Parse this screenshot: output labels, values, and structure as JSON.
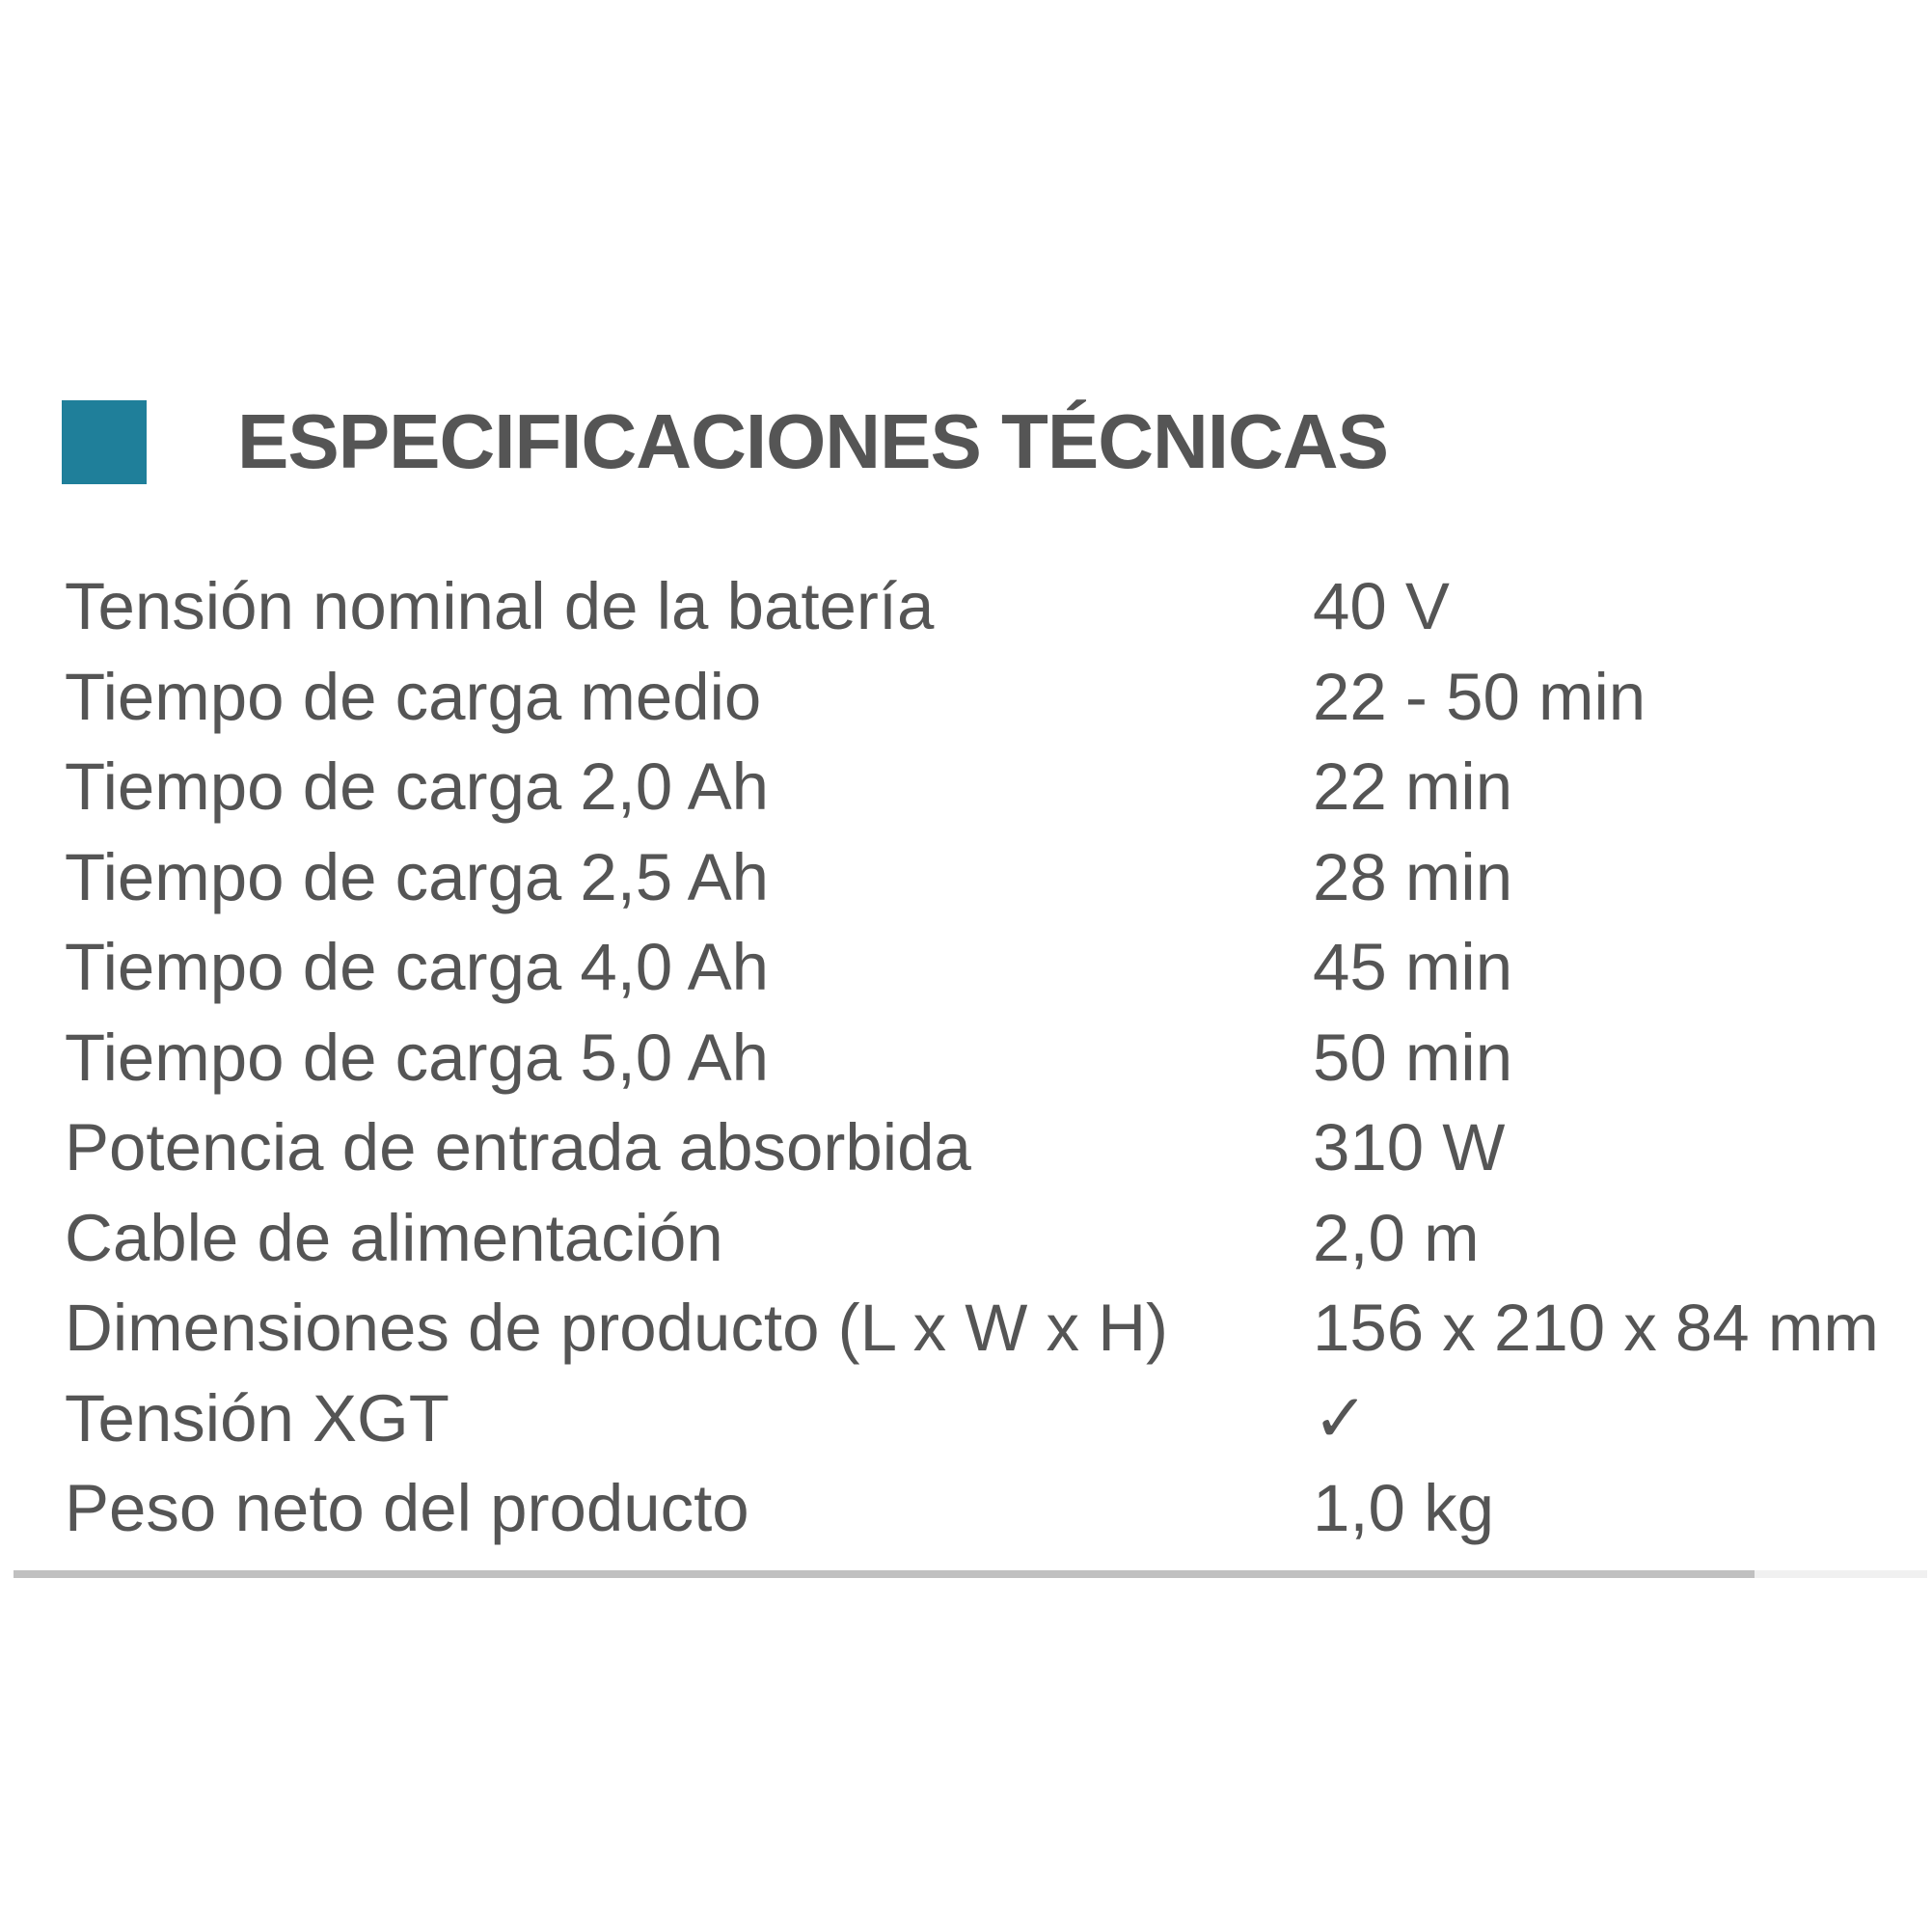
{
  "header": {
    "title": "ESPECIFICACIONES TÉCNICAS",
    "accent_color": "#1f7f9a"
  },
  "specs": [
    {
      "label": "Tensión nominal de la batería",
      "value": "40 V"
    },
    {
      "label": "Tiempo de carga medio",
      "value": "22 - 50 min"
    },
    {
      "label": "Tiempo de carga 2,0 Ah",
      "value": "22 min"
    },
    {
      "label": "Tiempo de carga 2,5 Ah",
      "value": "28 min"
    },
    {
      "label": "Tiempo de carga 4,0 Ah",
      "value": "45 min"
    },
    {
      "label": "Tiempo de carga 5,0 Ah",
      "value": "50 min"
    },
    {
      "label": "Potencia de entrada absorbida",
      "value": "310 W"
    },
    {
      "label": "Cable de alimentación",
      "value": "2,0 m"
    },
    {
      "label": "Dimensiones de producto (L x W x H)",
      "value": "156 x 210 x 84 mm"
    },
    {
      "label": "Tensión XGT",
      "value": "✓"
    },
    {
      "label": "Peso neto del producto",
      "value": "1,0 kg"
    }
  ],
  "scrollbar": {
    "progress_percent": 91
  }
}
